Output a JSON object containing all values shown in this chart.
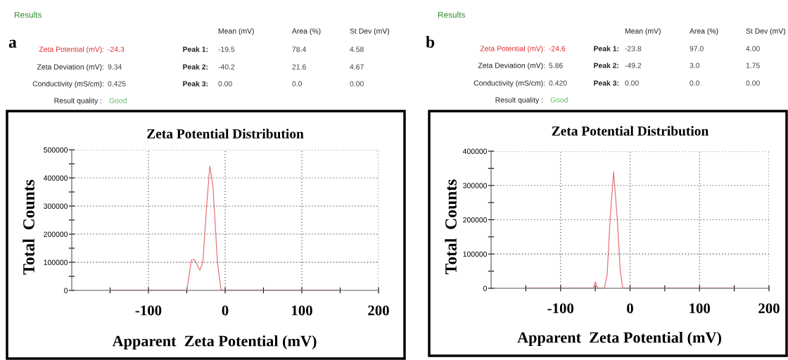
{
  "chart_data": [
    {
      "type": "line",
      "title": "Zeta Potential Distribution",
      "xlabel": "Apparent  Zeta Potential (mV)",
      "ylabel": "Total  Counts",
      "x": [
        -150,
        -50,
        -44,
        -40,
        -33,
        -29,
        -24,
        -20,
        -16,
        -10,
        -5.5,
        -3,
        150
      ],
      "series": [
        {
          "color": "#e8737a",
          "values": [
            0,
            0,
            108000,
            110000,
            72000,
            101000,
            305000,
            442000,
            373000,
            100000,
            4000,
            0,
            0
          ]
        }
      ],
      "xlim": [
        -200,
        200
      ],
      "ylim": [
        0,
        500000
      ],
      "xticks": [
        {
          "value": -150,
          "label": null
        },
        -100,
        {
          "value": -50,
          "label": null
        },
        0,
        {
          "value": 50,
          "label": null
        },
        100,
        {
          "value": 150,
          "label": null
        },
        200
      ],
      "yticks": [
        0,
        {
          "value": 50000,
          "label": null
        },
        100000,
        {
          "value": 150000,
          "label": null
        },
        200000,
        {
          "value": 250000,
          "label": null
        },
        300000,
        {
          "value": 350000,
          "label": null
        },
        400000,
        {
          "value": 450000,
          "label": null
        },
        500000
      ],
      "grid": true,
      "annotations": [
        "Results",
        "a",
        "Mean (mV)",
        "Area (%)",
        "St Dev (mV)",
        "Zeta Potential (mV):",
        "-24.3",
        "Peak 1:",
        "-19.5",
        "78.4",
        "4.58",
        "Zeta Deviation (mV):",
        "9.34",
        "Peak 2:",
        "-40.2",
        "21.6",
        "4.67",
        "Conductivity (mS/cm):",
        "0.425",
        "Peak 3:",
        "0.00",
        "0.0",
        "0.00",
        "Result quality :",
        "Good"
      ]
    },
    {
      "type": "line",
      "title": "Zeta Potential Distribution",
      "xlabel": "Apparent  Zeta Potential (mV)",
      "ylabel": "Total  Counts",
      "x": [
        -150,
        -53,
        -50,
        -47,
        -42,
        -37,
        -33,
        -28.6,
        -23.6,
        -18.5,
        -14,
        -10.4,
        150
      ],
      "series": [
        {
          "color": "#e8737a",
          "values": [
            0,
            0,
            18500,
            1000,
            0,
            0,
            38000,
            205000,
            340000,
            205000,
            48000,
            0,
            0
          ]
        }
      ],
      "xlim": [
        -200,
        200
      ],
      "ylim": [
        0,
        400000
      ],
      "xticks": [
        {
          "value": -150,
          "label": null
        },
        -100,
        {
          "value": -50,
          "label": null
        },
        0,
        {
          "value": 50,
          "label": null
        },
        100,
        {
          "value": 150,
          "label": null
        },
        200
      ],
      "yticks": [
        0,
        {
          "value": 50000,
          "label": null
        },
        100000,
        {
          "value": 150000,
          "label": null
        },
        200000,
        {
          "value": 250000,
          "label": null
        },
        300000,
        {
          "value": 350000,
          "label": null
        },
        400000
      ],
      "grid": true,
      "annotations": [
        "Results",
        "b",
        "Mean (mV)",
        "Area (%)",
        "St Dev (mV)",
        "Zeta Potential (mV):",
        "-24.6",
        "Peak 1:",
        "-23.8",
        "97.0",
        "4.00",
        "Zeta Deviation (mV):",
        "5.86",
        "Peak 2:",
        "-49.2",
        "3.0",
        "1.75",
        "Conductivity (mS/cm):",
        "0.420",
        "Peak 3:",
        "0.00",
        "0.0",
        "0.00",
        "Result quality :",
        "Good"
      ]
    }
  ]
}
